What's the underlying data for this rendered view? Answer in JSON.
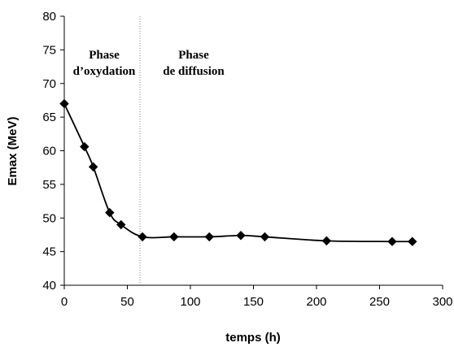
{
  "chart_data": {
    "type": "line",
    "title": "",
    "xlabel": "temps (h)",
    "ylabel": "Emax (MeV)",
    "xlim": [
      0,
      300
    ],
    "ylim": [
      40,
      80
    ],
    "x_ticks": [
      "0",
      "50",
      "100",
      "150",
      "200",
      "250",
      "300"
    ],
    "y_ticks": [
      "40",
      "45",
      "50",
      "55",
      "60",
      "65",
      "70",
      "75",
      "80"
    ],
    "grid": false,
    "legend": "none",
    "series": [
      {
        "x": [
          0,
          16,
          23,
          36,
          45,
          62,
          87,
          115,
          140,
          159,
          208,
          260,
          276
        ],
        "y": [
          67.0,
          60.6,
          57.6,
          50.8,
          49.0,
          47.2,
          47.2,
          47.2,
          47.4,
          47.2,
          46.6,
          46.5,
          46.5
        ],
        "color": "#000000",
        "marker": "diamond"
      }
    ],
    "annotations": {
      "separator_x": 60,
      "phase1_line1": "Phase",
      "phase1_line2": "d’oxydation",
      "phase2_line1": "Phase",
      "phase2_line2": "de diffusion"
    }
  }
}
